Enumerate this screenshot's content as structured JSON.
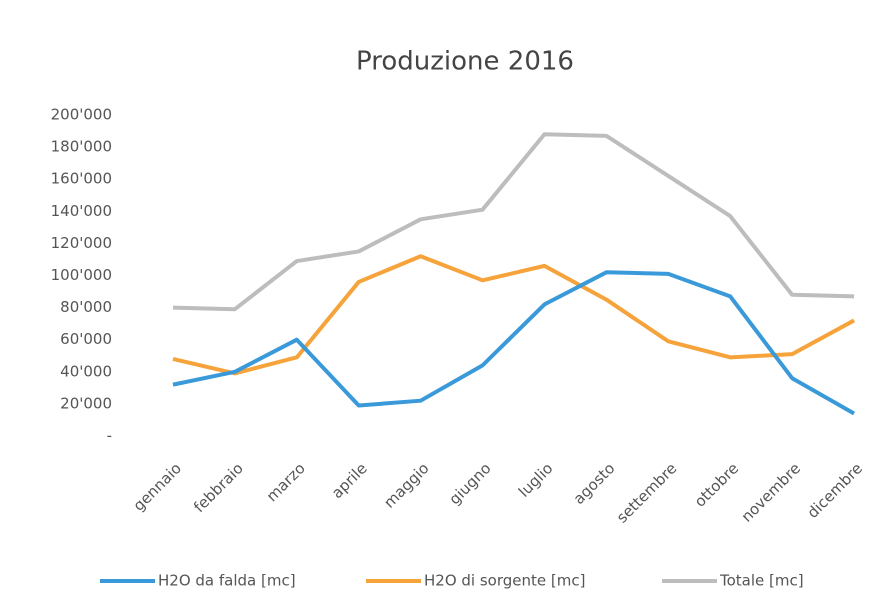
{
  "chart_data": {
    "type": "line",
    "title": "Produzione 2016",
    "categories": [
      "gennaio",
      "febbraio",
      "marzo",
      "aprile",
      "maggio",
      "giugno",
      "luglio",
      "agosto",
      "settembre",
      "ottobre",
      "novembre",
      "dicembre"
    ],
    "series": [
      {
        "name": "H2O da falda [mc]",
        "color": "#3a9ad9",
        "values": [
          32000,
          40000,
          60000,
          19000,
          22000,
          44000,
          82000,
          102000,
          101000,
          87000,
          36000,
          14000
        ]
      },
      {
        "name": "H2O di sorgente [mc]",
        "color": "#f5a33a",
        "values": [
          48000,
          39000,
          49000,
          96000,
          112000,
          97000,
          106000,
          85000,
          59000,
          49000,
          51000,
          72000
        ]
      },
      {
        "name": "Totale [mc]",
        "color": "#bdbdbd",
        "values": [
          80000,
          79000,
          109000,
          115000,
          135000,
          141000,
          188000,
          187000,
          162000,
          137000,
          88000,
          87000
        ]
      }
    ],
    "ylim": [
      0,
      200000
    ],
    "yticks": [
      {
        "value": 0,
        "label": "-"
      },
      {
        "value": 20000,
        "label": "20'000"
      },
      {
        "value": 40000,
        "label": "40'000"
      },
      {
        "value": 60000,
        "label": "60'000"
      },
      {
        "value": 80000,
        "label": "80'000"
      },
      {
        "value": 100000,
        "label": "100'000"
      },
      {
        "value": 120000,
        "label": "120'000"
      },
      {
        "value": 140000,
        "label": "140'000"
      },
      {
        "value": 160000,
        "label": "160'000"
      },
      {
        "value": 180000,
        "label": "180'000"
      },
      {
        "value": 200000,
        "label": "200'000"
      }
    ],
    "grid": false,
    "legend": "bottom"
  }
}
